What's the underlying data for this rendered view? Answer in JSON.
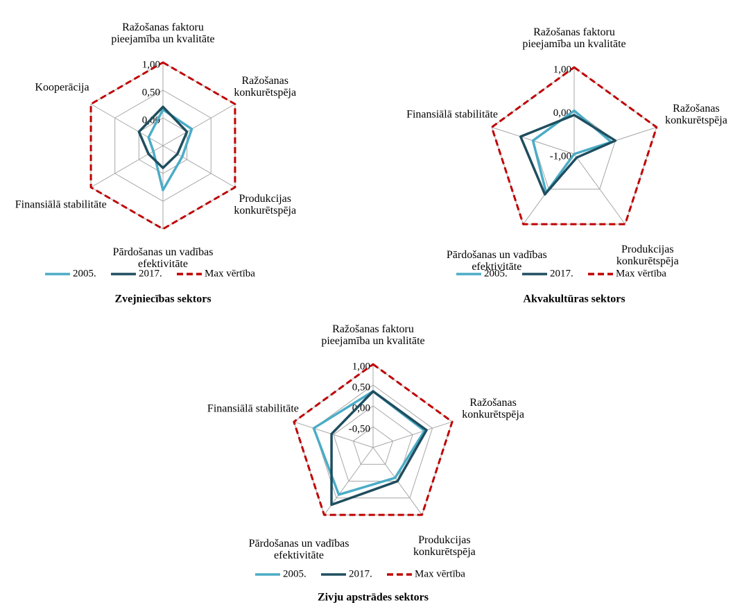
{
  "chart_data": [
    {
      "type": "radar",
      "title": "Zvejniecības sektors",
      "categories": [
        "Ražošanas faktoru pieejamība un kvalitāte",
        "Ražošanas konkurētspēja",
        "Produkcijas konkurētspēja",
        "Pārdošanas un vadības efektivitāte",
        "Finansiālā stabilitāte",
        "Kooperācija"
      ],
      "ylim": [
        -0.5,
        1
      ],
      "yticks": [
        {
          "value": 0,
          "label": "0,00"
        },
        {
          "value": 0.5,
          "label": "0,50"
        },
        {
          "value": 1,
          "label": "1,00"
        }
      ],
      "grid": true,
      "series": [
        {
          "name": "2005.",
          "color": "#4bacc6",
          "line_style": "solid",
          "values": [
            0.15,
            0.1,
            -0.1,
            0.3,
            -0.3,
            -0.2
          ]
        },
        {
          "name": "2017.",
          "color": "#1f4e5f",
          "line_style": "solid",
          "values": [
            0.2,
            0.0,
            -0.2,
            -0.1,
            -0.2,
            0.0
          ]
        },
        {
          "name": "Max vērtība",
          "color": "#c00000",
          "line_style": "dashed",
          "values": [
            1,
            1,
            1,
            1,
            1,
            1
          ]
        }
      ]
    },
    {
      "type": "radar",
      "title": "Akvakultūras sektors",
      "categories": [
        "Ražošanas faktoru pieejamība un kvalitāte",
        "Ražošanas konkurētspēja",
        "Produkcijas konkurētspēja",
        "Pārdošanas un vadības efektivitāte",
        "Finansiālā stabilitāte"
      ],
      "ylim": [
        -1,
        1
      ],
      "yticks": [
        {
          "value": -1,
          "label": "-1,00"
        },
        {
          "value": 0,
          "label": "0,00"
        },
        {
          "value": 1,
          "label": "1,00"
        }
      ],
      "grid": true,
      "series": [
        {
          "name": "2005.",
          "color": "#4bacc6",
          "line_style": "solid",
          "values": [
            0.0,
            -0.1,
            -1.0,
            0.1,
            0.0
          ]
        },
        {
          "name": "2017.",
          "color": "#1f4e5f",
          "line_style": "solid",
          "values": [
            -0.1,
            0.0,
            -0.9,
            0.15,
            0.3
          ]
        },
        {
          "name": "Max vērtība",
          "color": "#c00000",
          "line_style": "dashed",
          "values": [
            1,
            1,
            1,
            1,
            1
          ]
        }
      ]
    },
    {
      "type": "radar",
      "title": "Zivju apstrādes sektors",
      "categories": [
        "Ražošanas faktoru pieejamība un kvalitāte",
        "Ražošanas konkurētspēja",
        "Produkcijas konkurētspēja",
        "Pārdošanas un vadības efektivitāte",
        "Finansiālā stabilitāte"
      ],
      "ylim": [
        -1,
        1
      ],
      "yticks": [
        {
          "value": -0.5,
          "label": "-0,50"
        },
        {
          "value": 0,
          "label": "0,00"
        },
        {
          "value": 0.5,
          "label": "0,50"
        },
        {
          "value": 1,
          "label": "1,00"
        }
      ],
      "grid": true,
      "series": [
        {
          "name": "2005.",
          "color": "#4bacc6",
          "line_style": "solid",
          "values": [
            0.35,
            0.3,
            -0.1,
            0.4,
            0.5
          ]
        },
        {
          "name": "2017.",
          "color": "#1f4e5f",
          "line_style": "solid",
          "values": [
            0.35,
            0.35,
            0.0,
            0.7,
            0.05
          ]
        },
        {
          "name": "Max vērtība",
          "color": "#c00000",
          "line_style": "dashed",
          "values": [
            1,
            1,
            1,
            1,
            1
          ]
        }
      ]
    }
  ]
}
